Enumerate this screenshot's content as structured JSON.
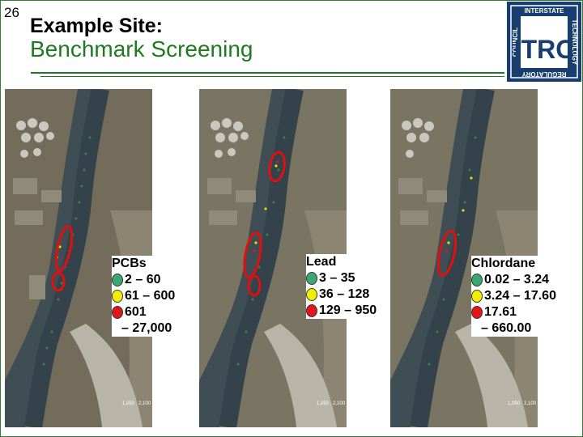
{
  "slide": {
    "number": "26",
    "title_line1": "Example Site:",
    "title_line2": "Benchmark Screening"
  },
  "logo": {
    "letters": "ITRC",
    "word_top": "INTERSTATE",
    "word_right": "TECHNOLOGY",
    "word_bottom": "REGULATORY",
    "word_left": "COUNCIL"
  },
  "colors": {
    "green_dot": "#3aa873",
    "yellow_dot": "#f2ee00",
    "red_dot": "#e2151b",
    "circle_outline": "#e01010",
    "title_green": "#1f7a1f",
    "logo_blue": "#173e6e"
  },
  "panels": [
    {
      "name": "PCBs",
      "legend": {
        "title": "PCBs",
        "ranges": [
          "2 – 60",
          "61 – 600",
          "601",
          "– 27,000"
        ]
      },
      "scale": [
        "1,050",
        "2,100"
      ]
    },
    {
      "name": "Lead",
      "legend": {
        "title": "Lead",
        "ranges": [
          "3 – 35",
          "36 – 128",
          "129 – 950"
        ]
      },
      "scale": [
        "1,050",
        "2,100"
      ]
    },
    {
      "name": "Chlordane",
      "legend": {
        "title": "Chlordane",
        "ranges": [
          "0.02 – 3.24",
          "3.24 – 17.60",
          "17.61",
          "– 660.00"
        ]
      },
      "scale": [
        "1,050",
        "2,100"
      ]
    }
  ]
}
